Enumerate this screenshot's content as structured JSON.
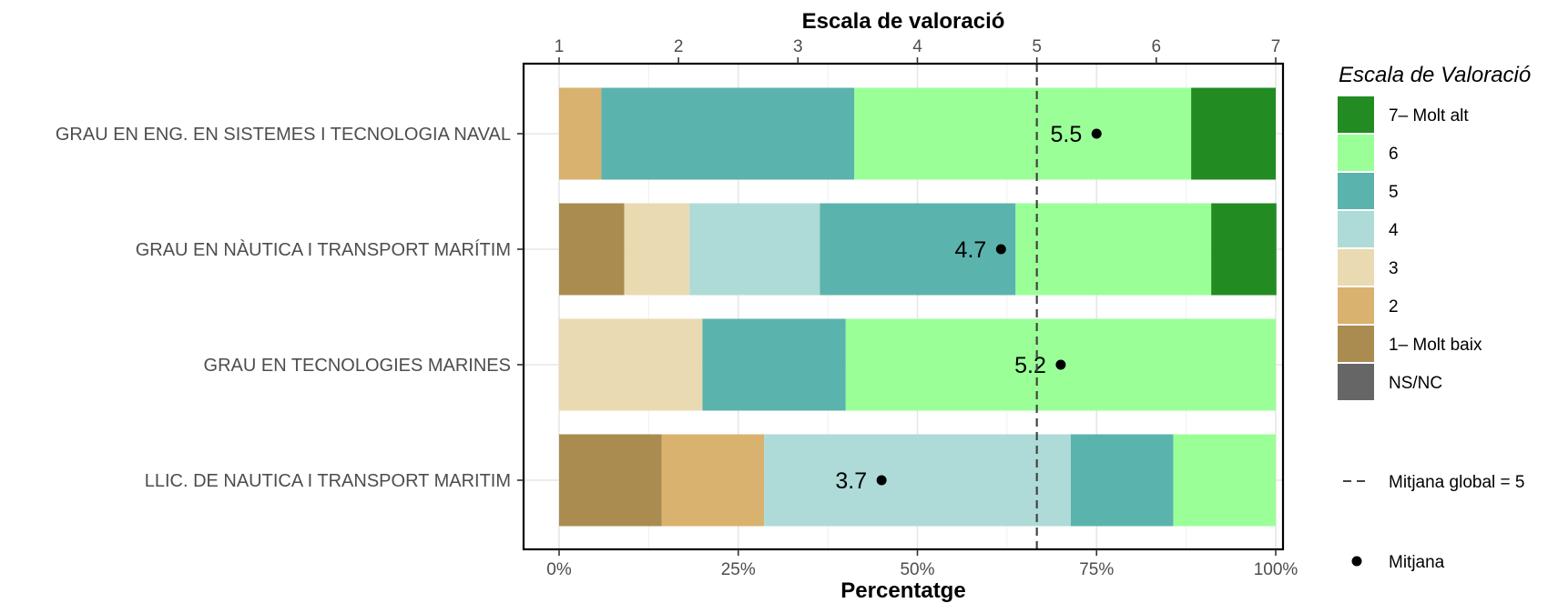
{
  "chart_data": {
    "type": "bar",
    "orientation": "horizontal",
    "stacked": true,
    "top_axis_title": "Escala de valoració",
    "bottom_axis_title": "Percentatge",
    "top_axis": {
      "range": [
        1,
        7
      ],
      "ticks": [
        "1",
        "2",
        "3",
        "4",
        "5",
        "6",
        "7"
      ]
    },
    "bottom_axis": {
      "range": [
        0,
        100
      ],
      "ticks": [
        "0%",
        "25%",
        "50%",
        "75%",
        "100%"
      ]
    },
    "grid": true,
    "categories": [
      "GRAU EN ENG. EN SISTEMES I TECNOLOGIA NAVAL",
      "GRAU EN NÀUTICA I TRANSPORT MARÍTIM",
      "GRAU EN TECNOLOGIES MARINES",
      "LLIC. DE NAUTICA I TRANSPORT MARITIM"
    ],
    "series": [
      {
        "name": "1– Molt baix",
        "color": "#AA8C50",
        "values": [
          0,
          9.1,
          0,
          14.3
        ]
      },
      {
        "name": "2",
        "color": "#D8B26E",
        "values": [
          5.9,
          0,
          0,
          14.3
        ]
      },
      {
        "name": "3",
        "color": "#EADAB2",
        "values": [
          0,
          9.1,
          20,
          0
        ]
      },
      {
        "name": "4",
        "color": "#AEDBD7",
        "values": [
          0,
          18.2,
          0,
          42.8
        ]
      },
      {
        "name": "5",
        "color": "#5BB3AD",
        "values": [
          35.3,
          27.3,
          20,
          14.3
        ]
      },
      {
        "name": "6",
        "color": "#9BFF98",
        "values": [
          47,
          27.3,
          60,
          14.3
        ]
      },
      {
        "name": "7– Molt alt",
        "color": "#228B22",
        "values": [
          11.8,
          9.1,
          0,
          0
        ]
      },
      {
        "name": "NS/NC",
        "color": "#666666",
        "values": [
          0,
          0,
          0,
          0
        ]
      }
    ],
    "means": [
      5.5,
      4.7,
      5.2,
      3.7
    ],
    "mean_labels": [
      "5.5",
      "4.7",
      "5.2",
      "3.7"
    ],
    "global_mean": 5,
    "legend": {
      "title": "Escala de Valoració",
      "placement": "right",
      "order": [
        "7– Molt alt",
        "6",
        "5",
        "4",
        "3",
        "2",
        "1– Molt baix",
        "NS/NC"
      ],
      "global_mean_label": "Mitjana global =  5",
      "mean_label": "Mitjana"
    }
  }
}
